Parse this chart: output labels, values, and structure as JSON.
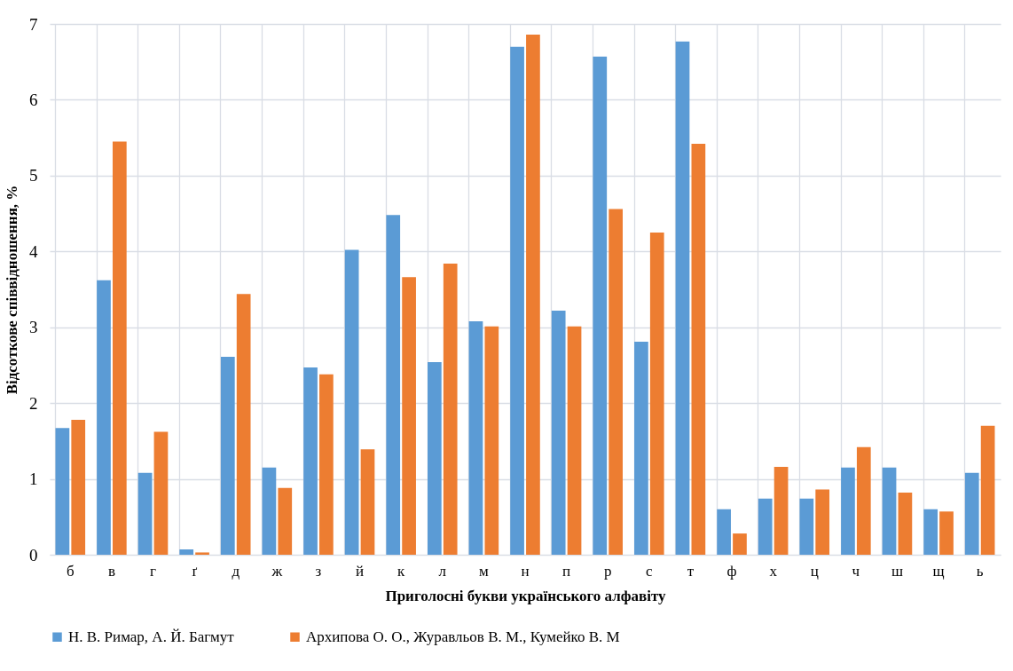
{
  "chart_data": {
    "type": "bar",
    "xlabel": "Приголосні букви українського алфавіту",
    "ylabel": "Відсоткове співвідношення, %",
    "categories": [
      "б",
      "в",
      "г",
      "ґ",
      "д",
      "ж",
      "з",
      "й",
      "к",
      "л",
      "м",
      "н",
      "п",
      "р",
      "с",
      "т",
      "ф",
      "х",
      "ц",
      "ч",
      "ш",
      "щ",
      "ь"
    ],
    "series": [
      {
        "name": "Н. В. Римар, А. Й. Багмут",
        "color": "#5b9bd5",
        "values": [
          1.67,
          3.62,
          1.08,
          0.07,
          2.61,
          1.15,
          2.47,
          4.02,
          4.48,
          2.54,
          3.08,
          6.7,
          3.22,
          6.57,
          2.81,
          6.77,
          0.6,
          0.74,
          0.74,
          1.15,
          1.15,
          0.6,
          1.08
        ]
      },
      {
        "name": "Архипова О. О., Журавльов В. М., Кумейко В. М",
        "color": "#ed7d31",
        "values": [
          1.78,
          5.45,
          1.62,
          0.03,
          3.44,
          0.88,
          2.38,
          1.39,
          3.66,
          3.84,
          3.01,
          6.86,
          3.01,
          4.56,
          4.25,
          5.42,
          0.28,
          1.16,
          0.86,
          1.42,
          0.82,
          0.57,
          1.7
        ]
      }
    ],
    "ylim": [
      0,
      7
    ],
    "yticks": [
      0,
      1,
      2,
      3,
      4,
      5,
      6,
      7
    ],
    "grid": true,
    "legend": "bottom"
  }
}
